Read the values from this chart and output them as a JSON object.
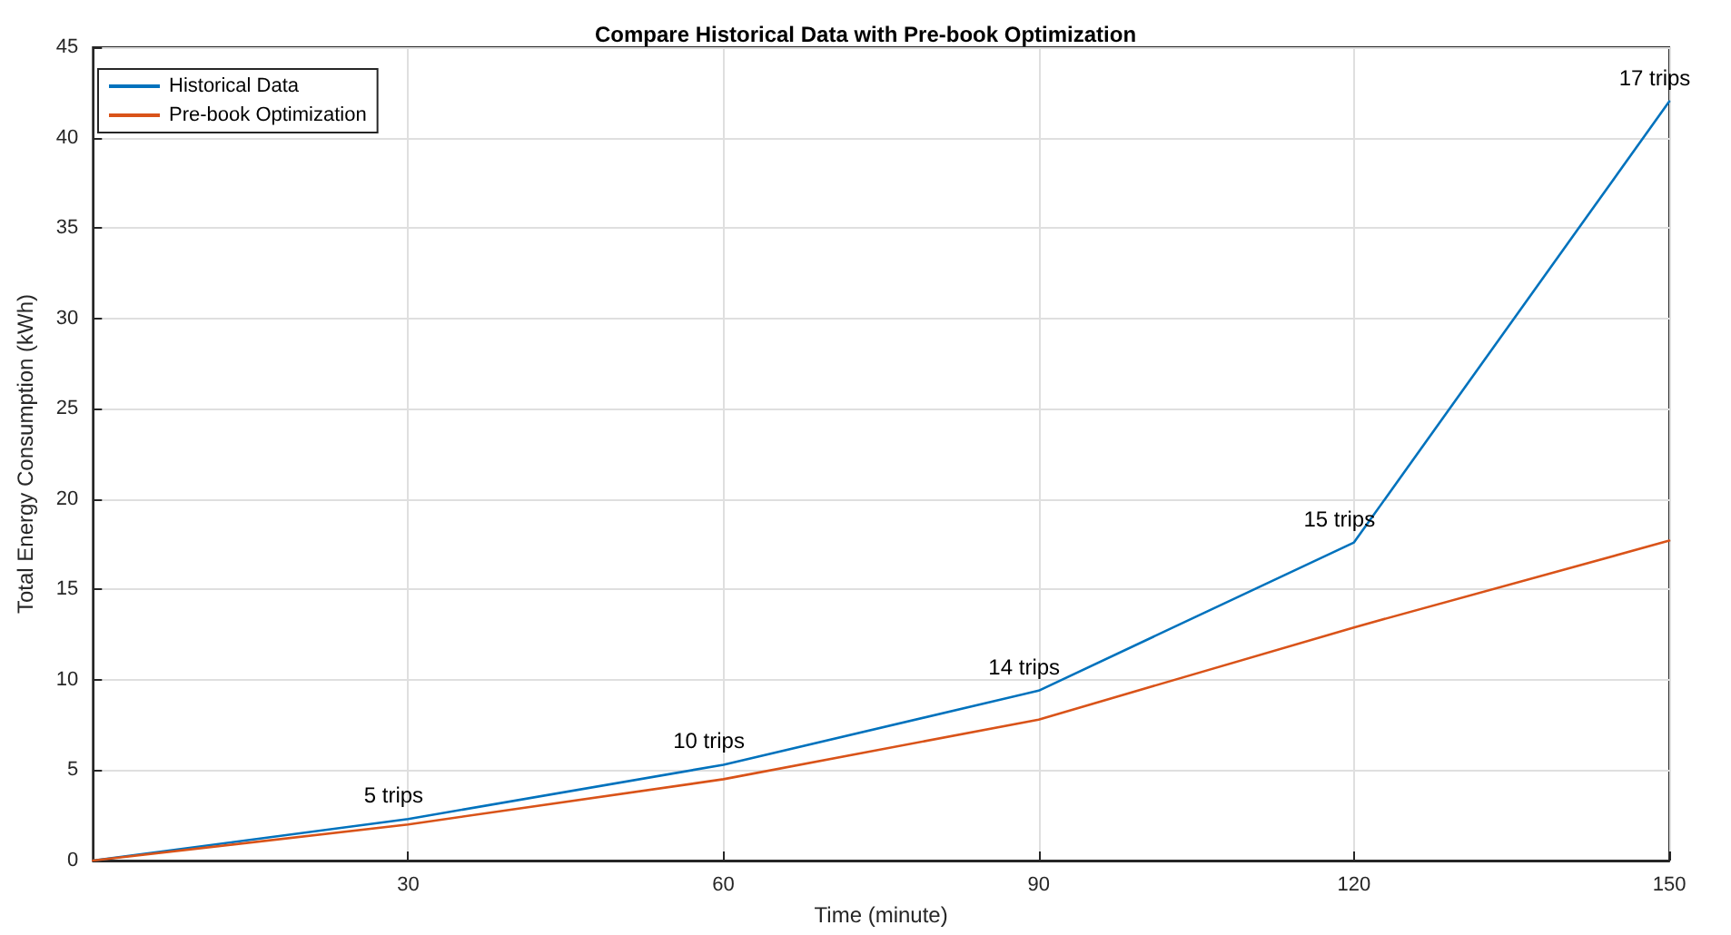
{
  "chart_data": {
    "type": "line",
    "title": "Compare Historical Data with Pre-book Optimization",
    "xlabel": "Time (minute)",
    "ylabel": "Total Energy Consumption (kWh)",
    "x": [
      0,
      30,
      60,
      90,
      120,
      150
    ],
    "series": [
      {
        "name": "Historical Data",
        "color": "#0072bd",
        "values": [
          0,
          2.3,
          5.3,
          9.4,
          17.6,
          42
        ]
      },
      {
        "name": "Pre-book Optimization",
        "color": "#d95319",
        "values": [
          0,
          2.0,
          4.5,
          7.8,
          12.9,
          17.7
        ]
      }
    ],
    "xlim": [
      0,
      150
    ],
    "xticks": [
      30,
      60,
      90,
      120,
      150
    ],
    "ylim": [
      0,
      45
    ],
    "yticks": [
      0,
      5,
      10,
      15,
      20,
      25,
      30,
      35,
      40,
      45
    ],
    "annotations": [
      {
        "text": "5 trips",
        "x": 30,
        "y": 2.3
      },
      {
        "text": "10 trips",
        "x": 60,
        "y": 5.3
      },
      {
        "text": "14 trips",
        "x": 90,
        "y": 9.4
      },
      {
        "text": "15 trips",
        "x": 120,
        "y": 17.6
      },
      {
        "text": "17 trips",
        "x": 150,
        "y": 42
      }
    ],
    "grid": true,
    "legend": "top left",
    "marker": "none",
    "line_style": "solid"
  }
}
